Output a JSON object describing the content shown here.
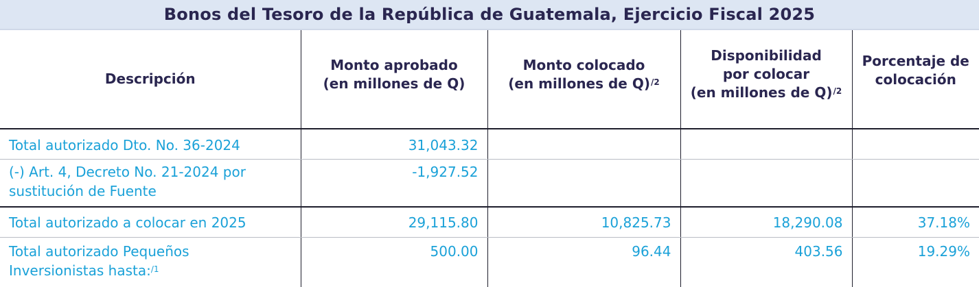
{
  "title": "Bonos del Tesoro de la República de Guatemala, Ejercicio Fiscal 2025",
  "colors": {
    "title_bg": "#dde6f3",
    "title_text": "#2a2650",
    "header_text": "#2a2650",
    "body_text": "#1aa1d8",
    "rule": "#1d1d2b"
  },
  "headers": {
    "descripcion": "Descripción",
    "monto_aprobado_l1": "Monto aprobado",
    "monto_aprobado_l2": "(en millones de Q)",
    "monto_colocado_l1": "Monto colocado",
    "monto_colocado_l2": "(en millones de Q)",
    "monto_colocado_note": "/2",
    "disponibilidad_l1": "Disponibilidad",
    "disponibilidad_l2": "por colocar",
    "disponibilidad_l3": "(en millones de Q)",
    "disponibilidad_note": "/2",
    "porcentaje_l1": "Porcentaje de",
    "porcentaje_l2": "colocación"
  },
  "rows": [
    {
      "descripcion_l1": "Total autorizado Dto. No. 36-2024",
      "descripcion_l2": "",
      "descripcion_note": "",
      "monto_aprobado": "31,043.32",
      "monto_colocado": "",
      "disponibilidad": "",
      "porcentaje": ""
    },
    {
      "descripcion_l1": "(-) Art. 4, Decreto No. 21-2024 por",
      "descripcion_l2": "sustitución de Fuente",
      "descripcion_note": "",
      "monto_aprobado": "-1,927.52",
      "monto_colocado": "",
      "disponibilidad": "",
      "porcentaje": ""
    },
    {
      "descripcion_l1": "Total autorizado a colocar en 2025",
      "descripcion_l2": "",
      "descripcion_note": "",
      "monto_aprobado": "29,115.80",
      "monto_colocado": "10,825.73",
      "disponibilidad": "18,290.08",
      "porcentaje": "37.18%"
    },
    {
      "descripcion_l1": "Total autorizado Pequeños",
      "descripcion_l2": "Inversionistas hasta:",
      "descripcion_note": "/1",
      "monto_aprobado": "500.00",
      "monto_colocado": "96.44",
      "disponibilidad": "403.56",
      "porcentaje": "19.29%"
    }
  ]
}
